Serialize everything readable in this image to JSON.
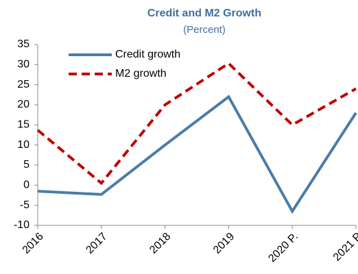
{
  "chart_data": {
    "type": "line",
    "title": "Credit and M2 Growth",
    "subtitle": "(Percent)",
    "categories": [
      "2016",
      "2017",
      "2018",
      "2019",
      "2020 P.",
      "2021 P"
    ],
    "series": [
      {
        "name": "Credit growth",
        "color": "#4a7ca8",
        "dash": "solid",
        "values": [
          -1.5,
          -2.3,
          10,
          22,
          -6.5,
          18
        ]
      },
      {
        "name": "M2 growth",
        "color": "#c00000",
        "dash": "dashed",
        "values": [
          13.7,
          0.5,
          20,
          30.3,
          15,
          24
        ]
      }
    ],
    "ylim": [
      -10,
      35
    ],
    "yticks": [
      -10,
      -5,
      0,
      5,
      10,
      15,
      20,
      25,
      30,
      35
    ],
    "grid": false,
    "legend": "upper left"
  }
}
